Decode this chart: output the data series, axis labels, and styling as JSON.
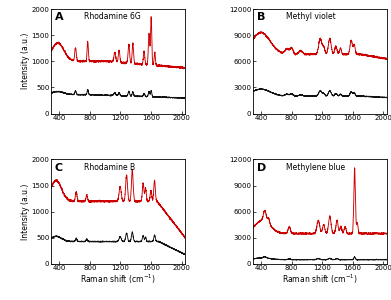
{
  "panels": [
    {
      "label": "A",
      "title": "Rhodamine 6G",
      "ylim": [
        0,
        2000
      ],
      "yticks": [
        0,
        500,
        1000,
        1500,
        2000
      ]
    },
    {
      "label": "B",
      "title": "Methyl violet",
      "ylim": [
        0,
        12000
      ],
      "yticks": [
        0,
        3000,
        6000,
        9000,
        12000
      ]
    },
    {
      "label": "C",
      "title": "Rhodamine B",
      "ylim": [
        0,
        2000
      ],
      "yticks": [
        0,
        500,
        1000,
        1500,
        2000
      ]
    },
    {
      "label": "D",
      "title": "Methylene blue",
      "ylim": [
        0,
        12000
      ],
      "yticks": [
        0,
        3000,
        6000,
        9000,
        12000
      ]
    }
  ],
  "xlim": [
    290,
    2050
  ],
  "xticks": [
    400,
    800,
    1200,
    1600,
    2000
  ],
  "xlabel": "Raman shift (cm$^{-1}$)",
  "ylabel": "Intensity (a.u.)",
  "red_color": "#cc0000",
  "black_color": "#111111",
  "line_width": 0.65,
  "seed": 42
}
